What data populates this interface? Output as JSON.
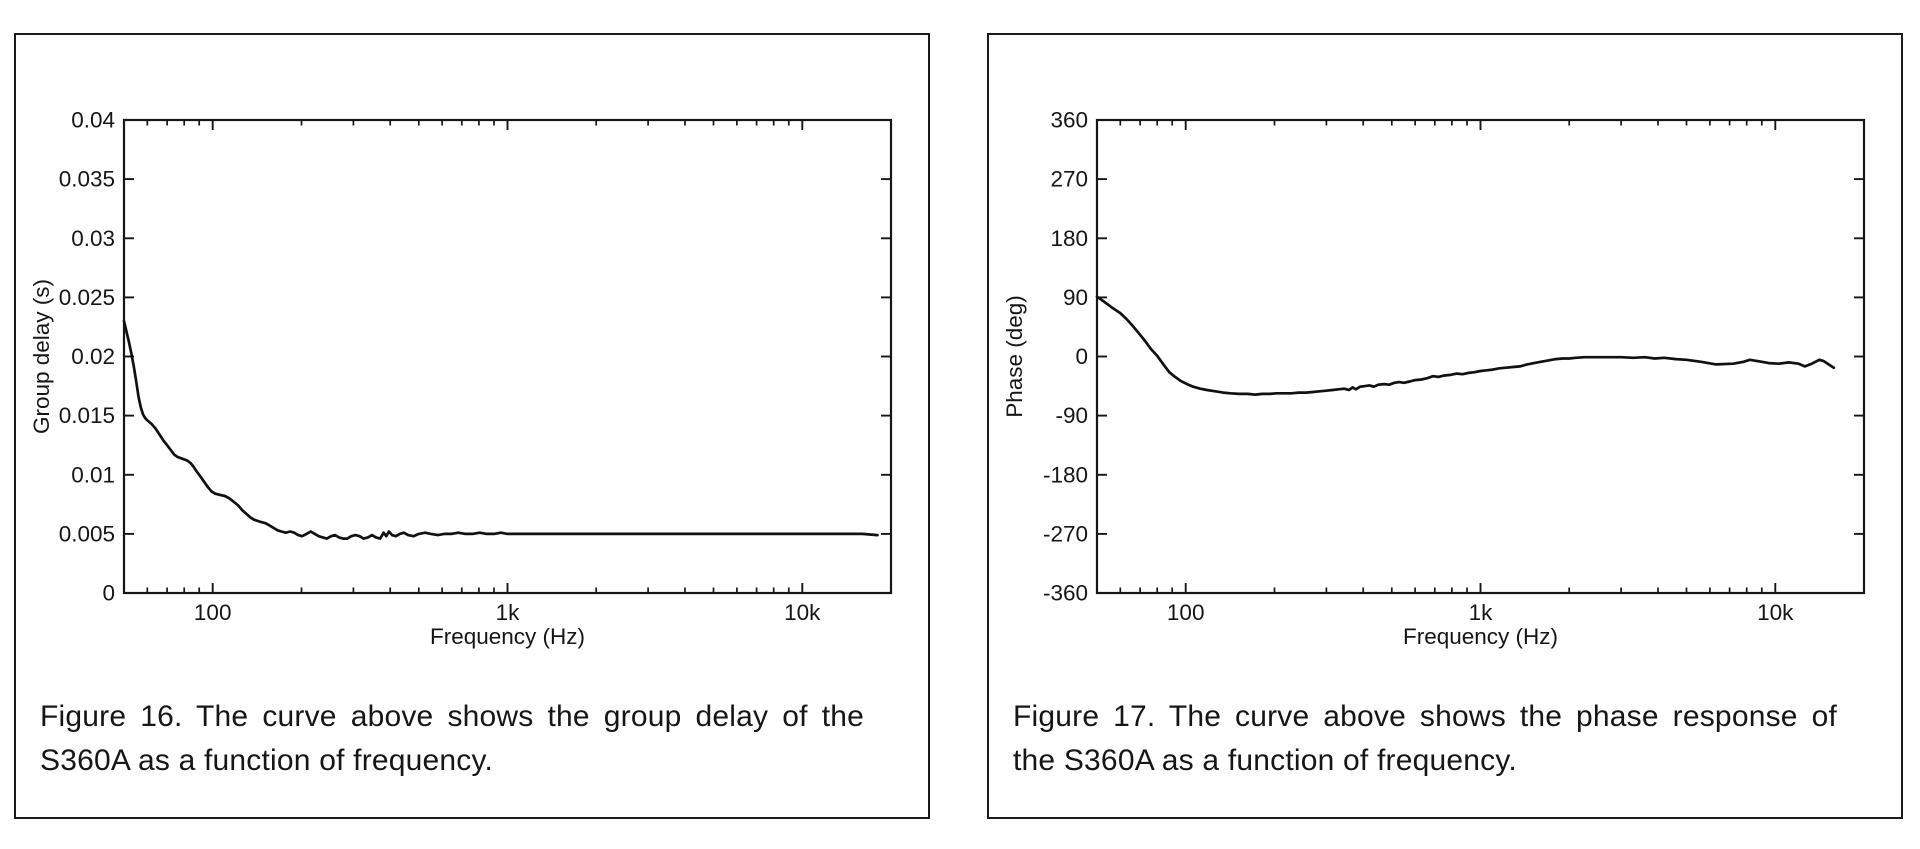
{
  "page": {
    "background": "#ffffff",
    "ink_color": "#161616"
  },
  "figures": [
    {
      "caption_lines": [
        "Figure 16. The curve above shows the group delay of the",
        "S360A as a function of frequency."
      ]
    },
    {
      "caption_lines": [
        "Figure 17. The curve above shows the phase response of",
        "the S360A as a function of frequency."
      ]
    }
  ],
  "chart_data": [
    {
      "type": "line",
      "title": "",
      "xlabel": "Frequency (Hz)",
      "ylabel": "Group delay (s)",
      "x_scale": "log",
      "xlim": [
        50,
        20000
      ],
      "ylim": [
        0,
        0.04
      ],
      "grid": false,
      "legend": null,
      "line_color": "#111111",
      "x_major_ticks": [
        {
          "value": 100,
          "label": "100"
        },
        {
          "value": 1000,
          "label": "1k"
        },
        {
          "value": 10000,
          "label": "10k"
        }
      ],
      "x_minor_ticks": [
        60,
        70,
        80,
        90,
        200,
        300,
        400,
        500,
        600,
        700,
        800,
        900,
        2000,
        3000,
        4000,
        5000,
        6000,
        7000,
        8000,
        9000,
        20000
      ],
      "y_ticks": [
        {
          "value": 0,
          "label": "0"
        },
        {
          "value": 0.005,
          "label": "0.005"
        },
        {
          "value": 0.01,
          "label": "0.01"
        },
        {
          "value": 0.015,
          "label": "0.015"
        },
        {
          "value": 0.02,
          "label": "0.02"
        },
        {
          "value": 0.025,
          "label": "0.025"
        },
        {
          "value": 0.03,
          "label": "0.03"
        },
        {
          "value": 0.035,
          "label": "0.035"
        },
        {
          "value": 0.04,
          "label": "0.04"
        }
      ],
      "series": [
        {
          "name": "group delay",
          "points": [
            [
              50,
              0.023
            ],
            [
              51,
              0.0221
            ],
            [
              52,
              0.0212
            ],
            [
              53,
              0.0202
            ],
            [
              54,
              0.0191
            ],
            [
              55,
              0.0179
            ],
            [
              56,
              0.0166
            ],
            [
              57,
              0.0157
            ],
            [
              58,
              0.0151
            ],
            [
              59,
              0.0148
            ],
            [
              60,
              0.0146
            ],
            [
              62,
              0.0143
            ],
            [
              64,
              0.0139
            ],
            [
              66,
              0.0134
            ],
            [
              68,
              0.0129
            ],
            [
              70,
              0.0125
            ],
            [
              72,
              0.0121
            ],
            [
              74,
              0.0117
            ],
            [
              76,
              0.0115
            ],
            [
              78,
              0.0114
            ],
            [
              80,
              0.0113
            ],
            [
              82,
              0.0112
            ],
            [
              84,
              0.011
            ],
            [
              86,
              0.0107
            ],
            [
              88,
              0.0103
            ],
            [
              90,
              0.01
            ],
            [
              93,
              0.0095
            ],
            [
              96,
              0.009
            ],
            [
              99,
              0.0086
            ],
            [
              102,
              0.0084
            ],
            [
              106,
              0.0083
            ],
            [
              110,
              0.0082
            ],
            [
              114,
              0.008
            ],
            [
              118,
              0.0077
            ],
            [
              122,
              0.0074
            ],
            [
              126,
              0.007
            ],
            [
              130,
              0.0067
            ],
            [
              134,
              0.0064
            ],
            [
              138,
              0.0062
            ],
            [
              142,
              0.0061
            ],
            [
              146,
              0.006
            ],
            [
              151,
              0.0059
            ],
            [
              156,
              0.0057
            ],
            [
              161,
              0.0055
            ],
            [
              166,
              0.0053
            ],
            [
              171,
              0.0052
            ],
            [
              177,
              0.0051
            ],
            [
              183,
              0.0052
            ],
            [
              189,
              0.0051
            ],
            [
              195,
              0.0049
            ],
            [
              201,
              0.0048
            ],
            [
              208,
              0.005
            ],
            [
              215,
              0.0052
            ],
            [
              222,
              0.005
            ],
            [
              229,
              0.0048
            ],
            [
              236,
              0.0047
            ],
            [
              244,
              0.0046
            ],
            [
              252,
              0.0048
            ],
            [
              260,
              0.0049
            ],
            [
              268,
              0.0047
            ],
            [
              277,
              0.0046
            ],
            [
              286,
              0.0046
            ],
            [
              295,
              0.0048
            ],
            [
              305,
              0.0049
            ],
            [
              315,
              0.0048
            ],
            [
              325,
              0.0046
            ],
            [
              336,
              0.0047
            ],
            [
              347,
              0.0049
            ],
            [
              358,
              0.0047
            ],
            [
              370,
              0.0046
            ],
            [
              380,
              0.0051
            ],
            [
              388,
              0.0048
            ],
            [
              396,
              0.0052
            ],
            [
              406,
              0.0049
            ],
            [
              418,
              0.0048
            ],
            [
              431,
              0.005
            ],
            [
              445,
              0.0051
            ],
            [
              460,
              0.0049
            ],
            [
              480,
              0.0048
            ],
            [
              500,
              0.005
            ],
            [
              525,
              0.0051
            ],
            [
              550,
              0.005
            ],
            [
              580,
              0.0049
            ],
            [
              610,
              0.005
            ],
            [
              645,
              0.005
            ],
            [
              680,
              0.0051
            ],
            [
              720,
              0.005
            ],
            [
              760,
              0.005
            ],
            [
              805,
              0.0051
            ],
            [
              850,
              0.005
            ],
            [
              900,
              0.005
            ],
            [
              950,
              0.0051
            ],
            [
              1000,
              0.005
            ],
            [
              1100,
              0.005
            ],
            [
              1200,
              0.005
            ],
            [
              1300,
              0.005
            ],
            [
              1450,
              0.005
            ],
            [
              1600,
              0.005
            ],
            [
              1800,
              0.005
            ],
            [
              2000,
              0.005
            ],
            [
              2250,
              0.005
            ],
            [
              2500,
              0.005
            ],
            [
              2800,
              0.005
            ],
            [
              3150,
              0.005
            ],
            [
              3550,
              0.005
            ],
            [
              4000,
              0.005
            ],
            [
              4500,
              0.005
            ],
            [
              5000,
              0.005
            ],
            [
              5600,
              0.005
            ],
            [
              6300,
              0.005
            ],
            [
              7100,
              0.005
            ],
            [
              8000,
              0.005
            ],
            [
              9000,
              0.005
            ],
            [
              10000,
              0.005
            ],
            [
              11200,
              0.005
            ],
            [
              12500,
              0.005
            ],
            [
              14000,
              0.005
            ],
            [
              16000,
              0.005
            ],
            [
              18000,
              0.0049
            ]
          ]
        }
      ]
    },
    {
      "type": "line",
      "title": "",
      "xlabel": "Frequency (Hz)",
      "ylabel": "Phase (deg)",
      "x_scale": "log",
      "xlim": [
        50,
        20000
      ],
      "ylim": [
        -360,
        360
      ],
      "grid": false,
      "legend": null,
      "line_color": "#111111",
      "x_major_ticks": [
        {
          "value": 100,
          "label": "100"
        },
        {
          "value": 1000,
          "label": "1k"
        },
        {
          "value": 10000,
          "label": "10k"
        }
      ],
      "x_minor_ticks": [
        60,
        70,
        80,
        90,
        200,
        300,
        400,
        500,
        600,
        700,
        800,
        900,
        2000,
        3000,
        4000,
        5000,
        6000,
        7000,
        8000,
        9000,
        20000
      ],
      "y_ticks": [
        {
          "value": -360,
          "label": "-360"
        },
        {
          "value": -270,
          "label": "-270"
        },
        {
          "value": -180,
          "label": "-180"
        },
        {
          "value": -90,
          "label": "-90"
        },
        {
          "value": 0,
          "label": "0"
        },
        {
          "value": 90,
          "label": "90"
        },
        {
          "value": 180,
          "label": "180"
        },
        {
          "value": 270,
          "label": "270"
        },
        {
          "value": 360,
          "label": "360"
        }
      ],
      "series": [
        {
          "name": "phase",
          "points": [
            [
              50,
              91
            ],
            [
              53,
              83
            ],
            [
              56,
              75
            ],
            [
              60,
              66
            ],
            [
              63,
              57
            ],
            [
              66,
              47
            ],
            [
              70,
              33
            ],
            [
              73,
              23
            ],
            [
              76,
              12
            ],
            [
              80,
              1
            ],
            [
              84,
              -12
            ],
            [
              88,
              -24
            ],
            [
              92,
              -31
            ],
            [
              96,
              -37
            ],
            [
              101,
              -42
            ],
            [
              106,
              -46
            ],
            [
              112,
              -49
            ],
            [
              118,
              -51
            ],
            [
              126,
              -53
            ],
            [
              134,
              -55
            ],
            [
              142,
              -56
            ],
            [
              152,
              -57
            ],
            [
              162,
              -57
            ],
            [
              172,
              -58
            ],
            [
              182,
              -57
            ],
            [
              192,
              -57
            ],
            [
              203,
              -56
            ],
            [
              215,
              -56
            ],
            [
              228,
              -56
            ],
            [
              242,
              -55
            ],
            [
              256,
              -55
            ],
            [
              270,
              -54
            ],
            [
              285,
              -53
            ],
            [
              300,
              -52
            ],
            [
              315,
              -51
            ],
            [
              330,
              -50
            ],
            [
              345,
              -49
            ],
            [
              358,
              -51
            ],
            [
              368,
              -47
            ],
            [
              378,
              -50
            ],
            [
              390,
              -46
            ],
            [
              405,
              -45
            ],
            [
              420,
              -44
            ],
            [
              435,
              -46
            ],
            [
              450,
              -43
            ],
            [
              470,
              -42
            ],
            [
              490,
              -43
            ],
            [
              510,
              -40
            ],
            [
              530,
              -39
            ],
            [
              550,
              -40
            ],
            [
              575,
              -38
            ],
            [
              600,
              -36
            ],
            [
              630,
              -35
            ],
            [
              660,
              -33
            ],
            [
              690,
              -30
            ],
            [
              720,
              -31
            ],
            [
              750,
              -29
            ],
            [
              790,
              -28
            ],
            [
              830,
              -26
            ],
            [
              870,
              -27
            ],
            [
              910,
              -25
            ],
            [
              950,
              -24
            ],
            [
              1000,
              -22
            ],
            [
              1050,
              -21
            ],
            [
              1100,
              -20
            ],
            [
              1160,
              -18
            ],
            [
              1220,
              -17
            ],
            [
              1290,
              -16
            ],
            [
              1360,
              -15
            ],
            [
              1440,
              -12
            ],
            [
              1520,
              -10
            ],
            [
              1600,
              -8
            ],
            [
              1700,
              -6
            ],
            [
              1800,
              -4
            ],
            [
              1900,
              -3
            ],
            [
              2000,
              -3
            ],
            [
              2100,
              -2
            ],
            [
              2250,
              -1
            ],
            [
              2400,
              -1
            ],
            [
              2700,
              -1
            ],
            [
              3000,
              -1
            ],
            [
              3300,
              -2
            ],
            [
              3600,
              -1
            ],
            [
              3900,
              -3
            ],
            [
              4200,
              -2
            ],
            [
              4600,
              -4
            ],
            [
              5000,
              -5
            ],
            [
              5600,
              -8
            ],
            [
              6300,
              -12
            ],
            [
              7200,
              -11
            ],
            [
              7800,
              -8
            ],
            [
              8200,
              -5
            ],
            [
              9000,
              -8
            ],
            [
              9500,
              -10
            ],
            [
              10300,
              -11
            ],
            [
              11100,
              -9
            ],
            [
              12000,
              -11
            ],
            [
              12600,
              -15
            ],
            [
              13300,
              -11
            ],
            [
              14100,
              -5
            ],
            [
              14600,
              -7
            ],
            [
              15800,
              -17
            ]
          ]
        }
      ]
    }
  ]
}
